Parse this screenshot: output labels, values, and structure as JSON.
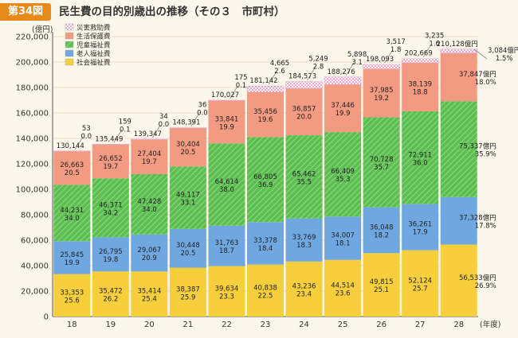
{
  "header": {
    "badge": "第34図",
    "title": "民生費の目的別歳出の推移（その３　市町村）"
  },
  "chart_data": {
    "type": "bar",
    "stacked": true,
    "y_unit": "(億円)",
    "x_unit": "(年度)",
    "ylim": [
      0,
      220000
    ],
    "y_ticks": [
      0,
      20000,
      40000,
      60000,
      80000,
      100000,
      120000,
      140000,
      160000,
      180000,
      200000,
      220000
    ],
    "y_tick_labels": [
      "0",
      "20,000",
      "40,000",
      "60,000",
      "80,000",
      "100,000",
      "120,000",
      "140,000",
      "160,000",
      "180,000",
      "200,000",
      "220,000"
    ],
    "categories": [
      "18",
      "19",
      "20",
      "21",
      "22",
      "23",
      "24",
      "25",
      "26",
      "27",
      "28"
    ],
    "legend_position": "top-left",
    "series": [
      {
        "name": "社会福祉費",
        "color": "#f7ce3c",
        "values": [
          33353,
          35472,
          35414,
          38387,
          39634,
          40838,
          43236,
          44514,
          49815,
          52124,
          56533
        ],
        "value_labels": [
          "33,353",
          "35,472",
          "35,414",
          "38,387",
          "39,634",
          "40,838",
          "43,236",
          "44,514",
          "49,815",
          "52,124",
          "56,533億円"
        ],
        "percents": [
          "25.6",
          "26.2",
          "25.4",
          "25.9",
          "23.3",
          "22.5",
          "23.4",
          "23.6",
          "25.1",
          "25.7",
          "26.9%"
        ]
      },
      {
        "name": "老人福祉費",
        "color": "#6fa8e0",
        "values": [
          25845,
          26795,
          29067,
          30448,
          31763,
          33378,
          33769,
          34007,
          36048,
          36261,
          37328
        ],
        "value_labels": [
          "25,845",
          "26,795",
          "29,067",
          "30,448",
          "31,763",
          "33,378",
          "33,769",
          "34,007",
          "36,048",
          "36,261",
          "37,328億円"
        ],
        "percents": [
          "19.9",
          "19.8",
          "20.9",
          "20.5",
          "18.7",
          "18.4",
          "18.3",
          "18.1",
          "18.2",
          "17.9",
          "17.8%"
        ]
      },
      {
        "name": "児童福祉費",
        "color": "#5dbf52",
        "values": [
          44231,
          46371,
          47428,
          49117,
          64614,
          66805,
          65462,
          66409,
          70728,
          72911,
          75337
        ],
        "value_labels": [
          "44,231",
          "46,371",
          "47,428",
          "49,117",
          "64,614",
          "66,805",
          "65,462",
          "66,409",
          "70,728",
          "72,911",
          "75,337億円"
        ],
        "percents": [
          "34.0",
          "34.2",
          "34.0",
          "33.1",
          "38.0",
          "36.9",
          "35.5",
          "35.3",
          "35.7",
          "36.0",
          "35.9%"
        ]
      },
      {
        "name": "生活保護費",
        "color": "#f29a82",
        "values": [
          26663,
          26652,
          27404,
          30404,
          33841,
          35456,
          36857,
          37446,
          37985,
          38139,
          37847
        ],
        "value_labels": [
          "26,663",
          "26,652",
          "27,404",
          "30,404",
          "33,841",
          "35,456",
          "36,857",
          "37,446",
          "37,985",
          "38,139",
          "37,847億円"
        ],
        "percents": [
          "20.5",
          "19.7",
          "19.7",
          "20.5",
          "19.9",
          "19.6",
          "20.0",
          "19.9",
          "19.2",
          "18.8",
          "18.0%"
        ]
      },
      {
        "name": "災害救助費",
        "color": "#f5b8d8",
        "values": [
          53,
          159,
          34,
          36,
          175,
          4665,
          5249,
          5898,
          3517,
          3235,
          3084
        ],
        "value_labels": [
          "53",
          "159",
          "34",
          "36",
          "175",
          "4,665",
          "5,249",
          "5,898",
          "3,517",
          "3,235",
          "3,084億円"
        ],
        "percents": [
          "0.0",
          "0.1",
          "0.0",
          "0.0",
          "0.1",
          "2.6",
          "2.8",
          "3.1",
          "1.8",
          "1.6",
          "1.5%"
        ]
      }
    ],
    "totals": [
      130144,
      135449,
      139347,
      148391,
      170027,
      181142,
      184573,
      188276,
      198093,
      202669,
      210128
    ],
    "total_labels": [
      "130,144",
      "135,449",
      "139,347",
      "148,391",
      "170,027",
      "181,142",
      "184,573",
      "188,276",
      "198,093",
      "202,669",
      "210,128億円"
    ]
  }
}
